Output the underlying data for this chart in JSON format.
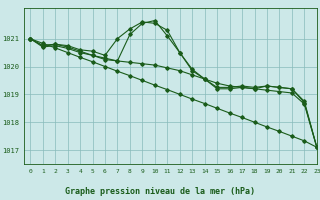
{
  "title": "Graphe pression niveau de la mer (hPa)",
  "background_color": "#cce8e8",
  "grid_color": "#88bbbb",
  "line_color": "#1a5c1a",
  "xlim": [
    -0.5,
    23
  ],
  "ylim": [
    1016.5,
    1022.1
  ],
  "yticks": [
    1017,
    1018,
    1019,
    1020,
    1021
  ],
  "xticks": [
    0,
    1,
    2,
    3,
    4,
    5,
    6,
    7,
    8,
    9,
    10,
    11,
    12,
    13,
    14,
    15,
    16,
    17,
    18,
    19,
    20,
    21,
    22,
    23
  ],
  "series": [
    {
      "x": [
        0,
        1,
        2,
        3,
        4,
        5,
        6,
        7,
        8,
        9,
        10,
        11,
        12,
        13,
        14,
        15,
        16,
        17,
        18,
        19,
        20,
        21,
        22,
        23
      ],
      "y": [
        1021.0,
        1020.75,
        1020.8,
        1020.75,
        1020.6,
        1020.55,
        1020.4,
        1021.0,
        1021.35,
        1021.6,
        1021.55,
        1021.3,
        1020.5,
        1019.9,
        1019.55,
        1019.2,
        1019.2,
        1019.25,
        1019.2,
        1019.3,
        1019.25,
        1019.2,
        1018.75,
        1017.1
      ]
    },
    {
      "x": [
        0,
        1,
        2,
        3,
        4,
        5,
        6,
        7,
        8,
        9,
        10,
        11,
        12,
        13,
        14,
        15,
        16,
        17,
        18,
        19,
        20,
        21,
        22,
        23
      ],
      "y": [
        1021.0,
        1020.75,
        1020.8,
        1020.7,
        1020.55,
        1020.4,
        1020.25,
        1020.2,
        1020.15,
        1020.1,
        1020.05,
        1019.95,
        1019.85,
        1019.7,
        1019.55,
        1019.4,
        1019.3,
        1019.25,
        1019.2,
        1019.15,
        1019.1,
        1019.05,
        1018.65,
        1017.1
      ]
    },
    {
      "x": [
        0,
        1,
        2,
        3,
        4,
        5,
        6,
        7,
        8,
        9,
        10,
        11,
        12,
        13,
        14,
        15,
        16,
        17,
        18,
        19,
        20,
        21,
        22,
        23
      ],
      "y": [
        1021.0,
        1020.7,
        1020.75,
        1020.65,
        1020.5,
        1020.4,
        1020.3,
        1020.2,
        1021.15,
        1021.55,
        1021.65,
        1021.1,
        1020.5,
        1019.85,
        1019.55,
        1019.25,
        1019.25,
        1019.3,
        1019.25,
        1019.3,
        1019.25,
        1019.2,
        1018.7,
        1017.1
      ]
    },
    {
      "x": [
        0,
        1,
        2,
        3,
        4,
        5,
        6,
        7,
        8,
        9,
        10,
        11,
        12,
        13,
        14,
        15,
        16,
        17,
        18,
        19,
        20,
        21,
        22,
        23
      ],
      "y": [
        1021.0,
        1020.83,
        1020.67,
        1020.5,
        1020.33,
        1020.17,
        1020.0,
        1019.83,
        1019.67,
        1019.5,
        1019.33,
        1019.17,
        1019.0,
        1018.83,
        1018.67,
        1018.5,
        1018.33,
        1018.17,
        1018.0,
        1017.83,
        1017.67,
        1017.5,
        1017.33,
        1017.1
      ]
    }
  ]
}
